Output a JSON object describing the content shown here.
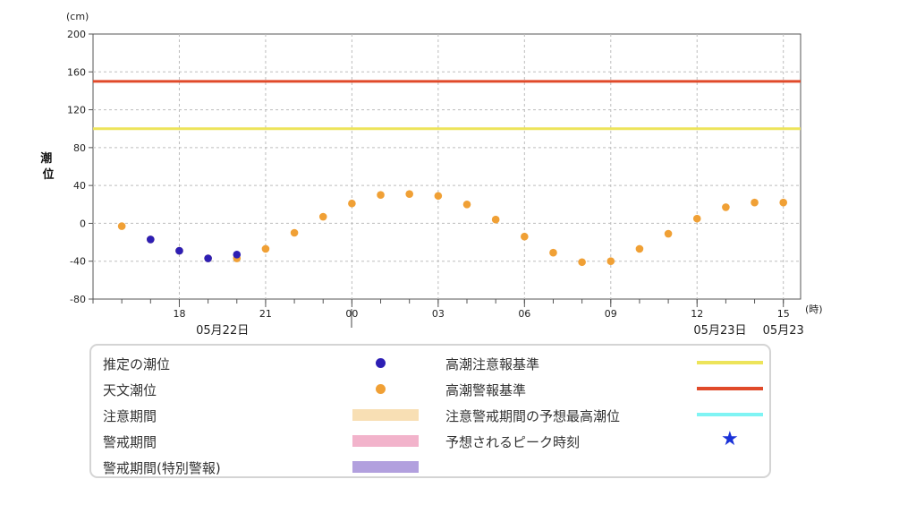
{
  "chart_data": {
    "type": "scatter",
    "title": "",
    "y_unit": "(cm)",
    "x_unit": "(時)",
    "ylabel": "潮位",
    "ylim": [
      -80,
      200
    ],
    "yticks": [
      -80,
      -40,
      0,
      40,
      80,
      120,
      160,
      200
    ],
    "xlim": [
      15,
      39.6
    ],
    "xticks": [
      {
        "x": 18,
        "label": "18"
      },
      {
        "x": 21,
        "label": "21"
      },
      {
        "x": 24,
        "label": "00"
      },
      {
        "x": 27,
        "label": "03"
      },
      {
        "x": 30,
        "label": "06"
      },
      {
        "x": 33,
        "label": "09"
      },
      {
        "x": 36,
        "label": "12"
      },
      {
        "x": 39,
        "label": "15"
      }
    ],
    "date_labels": [
      {
        "x": 19.5,
        "label": "05月22日"
      },
      {
        "x": 36.8,
        "label": "05月23日"
      },
      {
        "x": 39,
        "label": "05月23"
      }
    ],
    "grid": true,
    "reference_lines": [
      {
        "name": "高潮警報基準",
        "y": 150,
        "color": "#e04a2a"
      },
      {
        "name": "高潮注意報基準",
        "y": 100,
        "color": "#ede45a"
      }
    ],
    "series": [
      {
        "name": "天文潮位",
        "color": "#f0a035",
        "points": [
          {
            "x": 16,
            "y": -3
          },
          {
            "x": 17,
            "y": -17
          },
          {
            "x": 18,
            "y": -29
          },
          {
            "x": 19,
            "y": -37
          },
          {
            "x": 20,
            "y": -37
          },
          {
            "x": 21,
            "y": -27
          },
          {
            "x": 22,
            "y": -10
          },
          {
            "x": 23,
            "y": 7
          },
          {
            "x": 24,
            "y": 21
          },
          {
            "x": 25,
            "y": 30
          },
          {
            "x": 26,
            "y": 31
          },
          {
            "x": 27,
            "y": 29
          },
          {
            "x": 28,
            "y": 20
          },
          {
            "x": 29,
            "y": 4
          },
          {
            "x": 30,
            "y": -14
          },
          {
            "x": 31,
            "y": -31
          },
          {
            "x": 32,
            "y": -41
          },
          {
            "x": 33,
            "y": -40
          },
          {
            "x": 34,
            "y": -27
          },
          {
            "x": 35,
            "y": -11
          },
          {
            "x": 36,
            "y": 5
          },
          {
            "x": 37,
            "y": 17
          },
          {
            "x": 38,
            "y": 22
          },
          {
            "x": 39,
            "y": 22
          }
        ]
      },
      {
        "name": "推定の潮位",
        "color": "#2d1eb4",
        "points": [
          {
            "x": 17,
            "y": -17
          },
          {
            "x": 18,
            "y": -29
          },
          {
            "x": 19,
            "y": -37
          },
          {
            "x": 20,
            "y": -33
          }
        ]
      }
    ]
  },
  "legend": {
    "left": [
      {
        "label": "推定の潮位",
        "kind": "dot",
        "color": "#2d1eb4"
      },
      {
        "label": "天文潮位",
        "kind": "dot",
        "color": "#f0a035"
      },
      {
        "label": "注意期間",
        "kind": "bar",
        "color": "#f8dfb4"
      },
      {
        "label": "警戒期間",
        "kind": "bar",
        "color": "#f2b3cb"
      },
      {
        "label": "警戒期間(特別警報)",
        "kind": "bar",
        "color": "#b2a0de"
      }
    ],
    "right": [
      {
        "label": "高潮注意報基準",
        "kind": "line",
        "color": "#ede45a"
      },
      {
        "label": "高潮警報基準",
        "kind": "line",
        "color": "#e04a2a"
      },
      {
        "label": "注意警戒期間の予想最高潮位",
        "kind": "line",
        "color": "#7ff4f4"
      },
      {
        "label": "予想されるピーク時刻",
        "kind": "star",
        "color": "#1a32d8",
        "glyph": "★"
      }
    ]
  }
}
